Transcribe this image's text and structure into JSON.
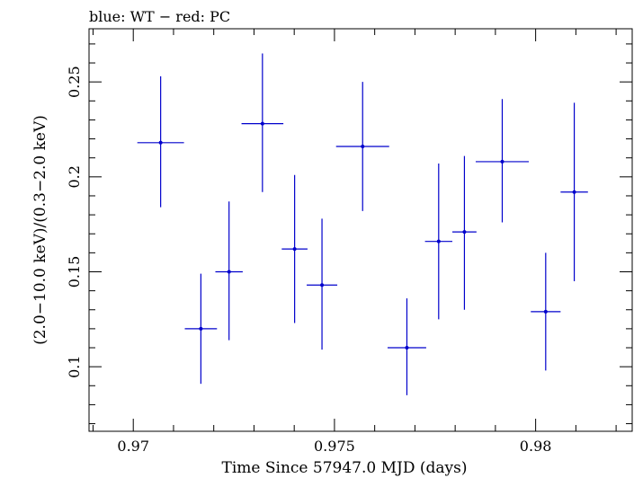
{
  "chart_data": {
    "type": "scatter",
    "title": "blue: WT − red: PC",
    "xlabel": "Time Since 57947.0 MJD (days)",
    "ylabel": "(2.0−10.0 keV)/(0.3−2.0 keV)",
    "xlim": [
      0.9689,
      0.9824
    ],
    "ylim": [
      0.066,
      0.278
    ],
    "x_ticks": [
      0.97,
      0.975,
      0.98
    ],
    "x_tick_labels": [
      "0.97",
      "0.975",
      "0.98"
    ],
    "y_ticks": [
      0.1,
      0.15,
      0.2,
      0.25
    ],
    "y_tick_labels": [
      "0.1",
      "0.15",
      "0.2",
      "0.25"
    ],
    "grid": false,
    "series": [
      {
        "color": "#0000cc",
        "points": [
          {
            "x": 0.97068,
            "xerr": 0.00058,
            "y": 0.218,
            "ylo": 0.184,
            "yhi": 0.253
          },
          {
            "x": 0.97168,
            "xerr": 0.0004,
            "y": 0.12,
            "ylo": 0.091,
            "yhi": 0.149
          },
          {
            "x": 0.97238,
            "xerr": 0.00034,
            "y": 0.15,
            "ylo": 0.114,
            "yhi": 0.187
          },
          {
            "x": 0.97321,
            "xerr": 0.00052,
            "y": 0.228,
            "ylo": 0.192,
            "yhi": 0.265
          },
          {
            "x": 0.97401,
            "xerr": 0.00032,
            "y": 0.162,
            "ylo": 0.123,
            "yhi": 0.201
          },
          {
            "x": 0.97469,
            "xerr": 0.00038,
            "y": 0.143,
            "ylo": 0.109,
            "yhi": 0.178
          },
          {
            "x": 0.9757,
            "xerr": 0.00066,
            "y": 0.216,
            "ylo": 0.182,
            "yhi": 0.25
          },
          {
            "x": 0.9768,
            "xerr": 0.00048,
            "y": 0.11,
            "ylo": 0.085,
            "yhi": 0.136
          },
          {
            "x": 0.97759,
            "xerr": 0.00034,
            "y": 0.166,
            "ylo": 0.125,
            "yhi": 0.207
          },
          {
            "x": 0.97823,
            "xerr": 0.0003,
            "y": 0.171,
            "ylo": 0.13,
            "yhi": 0.211
          },
          {
            "x": 0.97917,
            "xerr": 0.00066,
            "y": 0.208,
            "ylo": 0.176,
            "yhi": 0.241
          },
          {
            "x": 0.98025,
            "xerr": 0.00037,
            "y": 0.129,
            "ylo": 0.098,
            "yhi": 0.16
          },
          {
            "x": 0.98096,
            "xerr": 0.00034,
            "y": 0.192,
            "ylo": 0.145,
            "yhi": 0.239
          }
        ]
      }
    ]
  }
}
